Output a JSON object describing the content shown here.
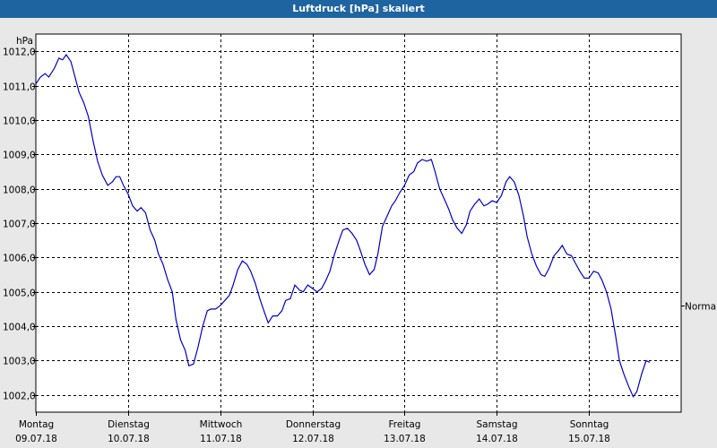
{
  "colors": {
    "title_bar": "#1e64a0",
    "background": "#e8e8e8",
    "plot_background": "#ffffff",
    "line": "#0000c8",
    "grid": "#000000"
  },
  "chart_data": {
    "type": "line",
    "title": "Luftdruck [hPa] skaliert",
    "ylabel": "hPa",
    "ylim": [
      1001.5,
      1012.5
    ],
    "xlim": [
      0,
      7.0
    ],
    "yticks": [
      {
        "value": 1002,
        "label": "1002,0"
      },
      {
        "value": 1003,
        "label": "1003,0"
      },
      {
        "value": 1004,
        "label": "1004,0"
      },
      {
        "value": 1005,
        "label": "1005,0"
      },
      {
        "value": 1006,
        "label": "1006,0"
      },
      {
        "value": 1007,
        "label": "1007,0"
      },
      {
        "value": 1008,
        "label": "1008,0"
      },
      {
        "value": 1009,
        "label": "1009,0"
      },
      {
        "value": 1010,
        "label": "1010,0"
      },
      {
        "value": 1011,
        "label": "1011,0"
      },
      {
        "value": 1012,
        "label": "1012,0"
      }
    ],
    "xticks": [
      {
        "value": 0,
        "day": "Montag",
        "date": "09.07.18"
      },
      {
        "value": 1,
        "day": "Dienstag",
        "date": "10.07.18"
      },
      {
        "value": 2,
        "day": "Mittwoch",
        "date": "11.07.18"
      },
      {
        "value": 3,
        "day": "Donnerstag",
        "date": "12.07.18"
      },
      {
        "value": 4,
        "day": "Freitag",
        "date": "13.07.18"
      },
      {
        "value": 5,
        "day": "Samstag",
        "date": "14.07.18"
      },
      {
        "value": 6,
        "day": "Sonntag",
        "date": "15.07.18"
      }
    ],
    "reference": {
      "label": "Normal",
      "value": 1004.6
    },
    "grid": true,
    "series": [
      {
        "points": [
          [
            0.0,
            1011.05
          ],
          [
            0.05,
            1011.25
          ],
          [
            0.1,
            1011.35
          ],
          [
            0.14,
            1011.25
          ],
          [
            0.2,
            1011.5
          ],
          [
            0.25,
            1011.8
          ],
          [
            0.29,
            1011.75
          ],
          [
            0.33,
            1011.9
          ],
          [
            0.38,
            1011.7
          ],
          [
            0.42,
            1011.3
          ],
          [
            0.47,
            1010.8
          ],
          [
            0.52,
            1010.5
          ],
          [
            0.57,
            1010.1
          ],
          [
            0.62,
            1009.4
          ],
          [
            0.67,
            1008.8
          ],
          [
            0.72,
            1008.4
          ],
          [
            0.78,
            1008.1
          ],
          [
            0.83,
            1008.2
          ],
          [
            0.87,
            1008.35
          ],
          [
            0.91,
            1008.35
          ],
          [
            0.95,
            1008.1
          ],
          [
            1.0,
            1007.85
          ],
          [
            1.05,
            1007.5
          ],
          [
            1.1,
            1007.35
          ],
          [
            1.14,
            1007.45
          ],
          [
            1.19,
            1007.3
          ],
          [
            1.24,
            1006.8
          ],
          [
            1.29,
            1006.5
          ],
          [
            1.33,
            1006.1
          ],
          [
            1.38,
            1005.8
          ],
          [
            1.43,
            1005.35
          ],
          [
            1.48,
            1005.0
          ],
          [
            1.52,
            1004.2
          ],
          [
            1.57,
            1003.6
          ],
          [
            1.62,
            1003.3
          ],
          [
            1.66,
            1002.85
          ],
          [
            1.71,
            1002.9
          ],
          [
            1.76,
            1003.4
          ],
          [
            1.81,
            1004.0
          ],
          [
            1.86,
            1004.45
          ],
          [
            1.9,
            1004.5
          ],
          [
            1.95,
            1004.5
          ],
          [
            2.0,
            1004.6
          ],
          [
            2.05,
            1004.75
          ],
          [
            2.1,
            1004.9
          ],
          [
            2.14,
            1005.2
          ],
          [
            2.19,
            1005.65
          ],
          [
            2.24,
            1005.9
          ],
          [
            2.29,
            1005.8
          ],
          [
            2.33,
            1005.6
          ],
          [
            2.38,
            1005.25
          ],
          [
            2.43,
            1004.8
          ],
          [
            2.48,
            1004.4
          ],
          [
            2.52,
            1004.1
          ],
          [
            2.57,
            1004.3
          ],
          [
            2.62,
            1004.3
          ],
          [
            2.67,
            1004.45
          ],
          [
            2.71,
            1004.75
          ],
          [
            2.76,
            1004.8
          ],
          [
            2.81,
            1005.2
          ],
          [
            2.86,
            1005.05
          ],
          [
            2.9,
            1005.0
          ],
          [
            2.95,
            1005.2
          ],
          [
            3.0,
            1005.1
          ],
          [
            3.05,
            1005.0
          ],
          [
            3.1,
            1005.1
          ],
          [
            3.14,
            1005.3
          ],
          [
            3.19,
            1005.6
          ],
          [
            3.24,
            1006.1
          ],
          [
            3.29,
            1006.5
          ],
          [
            3.33,
            1006.8
          ],
          [
            3.38,
            1006.85
          ],
          [
            3.43,
            1006.7
          ],
          [
            3.48,
            1006.5
          ],
          [
            3.52,
            1006.2
          ],
          [
            3.57,
            1005.8
          ],
          [
            3.62,
            1005.5
          ],
          [
            3.67,
            1005.65
          ],
          [
            3.71,
            1006.1
          ],
          [
            3.76,
            1006.9
          ],
          [
            3.81,
            1007.2
          ],
          [
            3.86,
            1007.5
          ],
          [
            3.9,
            1007.65
          ],
          [
            3.95,
            1007.9
          ],
          [
            4.0,
            1008.1
          ],
          [
            4.05,
            1008.4
          ],
          [
            4.1,
            1008.5
          ],
          [
            4.14,
            1008.75
          ],
          [
            4.19,
            1008.85
          ],
          [
            4.24,
            1008.8
          ],
          [
            4.29,
            1008.85
          ],
          [
            4.33,
            1008.5
          ],
          [
            4.38,
            1008.0
          ],
          [
            4.43,
            1007.7
          ],
          [
            4.48,
            1007.4
          ],
          [
            4.52,
            1007.1
          ],
          [
            4.57,
            1006.85
          ],
          [
            4.62,
            1006.7
          ],
          [
            4.67,
            1006.95
          ],
          [
            4.71,
            1007.35
          ],
          [
            4.76,
            1007.55
          ],
          [
            4.81,
            1007.7
          ],
          [
            4.86,
            1007.5
          ],
          [
            4.9,
            1007.55
          ],
          [
            4.95,
            1007.65
          ],
          [
            5.0,
            1007.6
          ],
          [
            5.05,
            1007.8
          ],
          [
            5.1,
            1008.2
          ],
          [
            5.14,
            1008.35
          ],
          [
            5.19,
            1008.2
          ],
          [
            5.24,
            1007.8
          ],
          [
            5.29,
            1007.2
          ],
          [
            5.33,
            1006.6
          ],
          [
            5.38,
            1006.1
          ],
          [
            5.43,
            1005.75
          ],
          [
            5.48,
            1005.5
          ],
          [
            5.52,
            1005.45
          ],
          [
            5.57,
            1005.7
          ],
          [
            5.62,
            1006.05
          ],
          [
            5.67,
            1006.2
          ],
          [
            5.71,
            1006.35
          ],
          [
            5.76,
            1006.1
          ],
          [
            5.81,
            1006.05
          ],
          [
            5.86,
            1005.8
          ],
          [
            5.9,
            1005.6
          ],
          [
            5.95,
            1005.4
          ],
          [
            6.0,
            1005.4
          ],
          [
            6.05,
            1005.6
          ],
          [
            6.1,
            1005.55
          ],
          [
            6.14,
            1005.35
          ],
          [
            6.19,
            1005.0
          ],
          [
            6.24,
            1004.5
          ],
          [
            6.29,
            1003.7
          ],
          [
            6.33,
            1003.0
          ],
          [
            6.38,
            1002.6
          ],
          [
            6.43,
            1002.25
          ],
          [
            6.48,
            1001.95
          ],
          [
            6.52,
            1002.1
          ],
          [
            6.57,
            1002.6
          ],
          [
            6.62,
            1003.0
          ],
          [
            6.66,
            1002.95
          ]
        ]
      }
    ]
  }
}
